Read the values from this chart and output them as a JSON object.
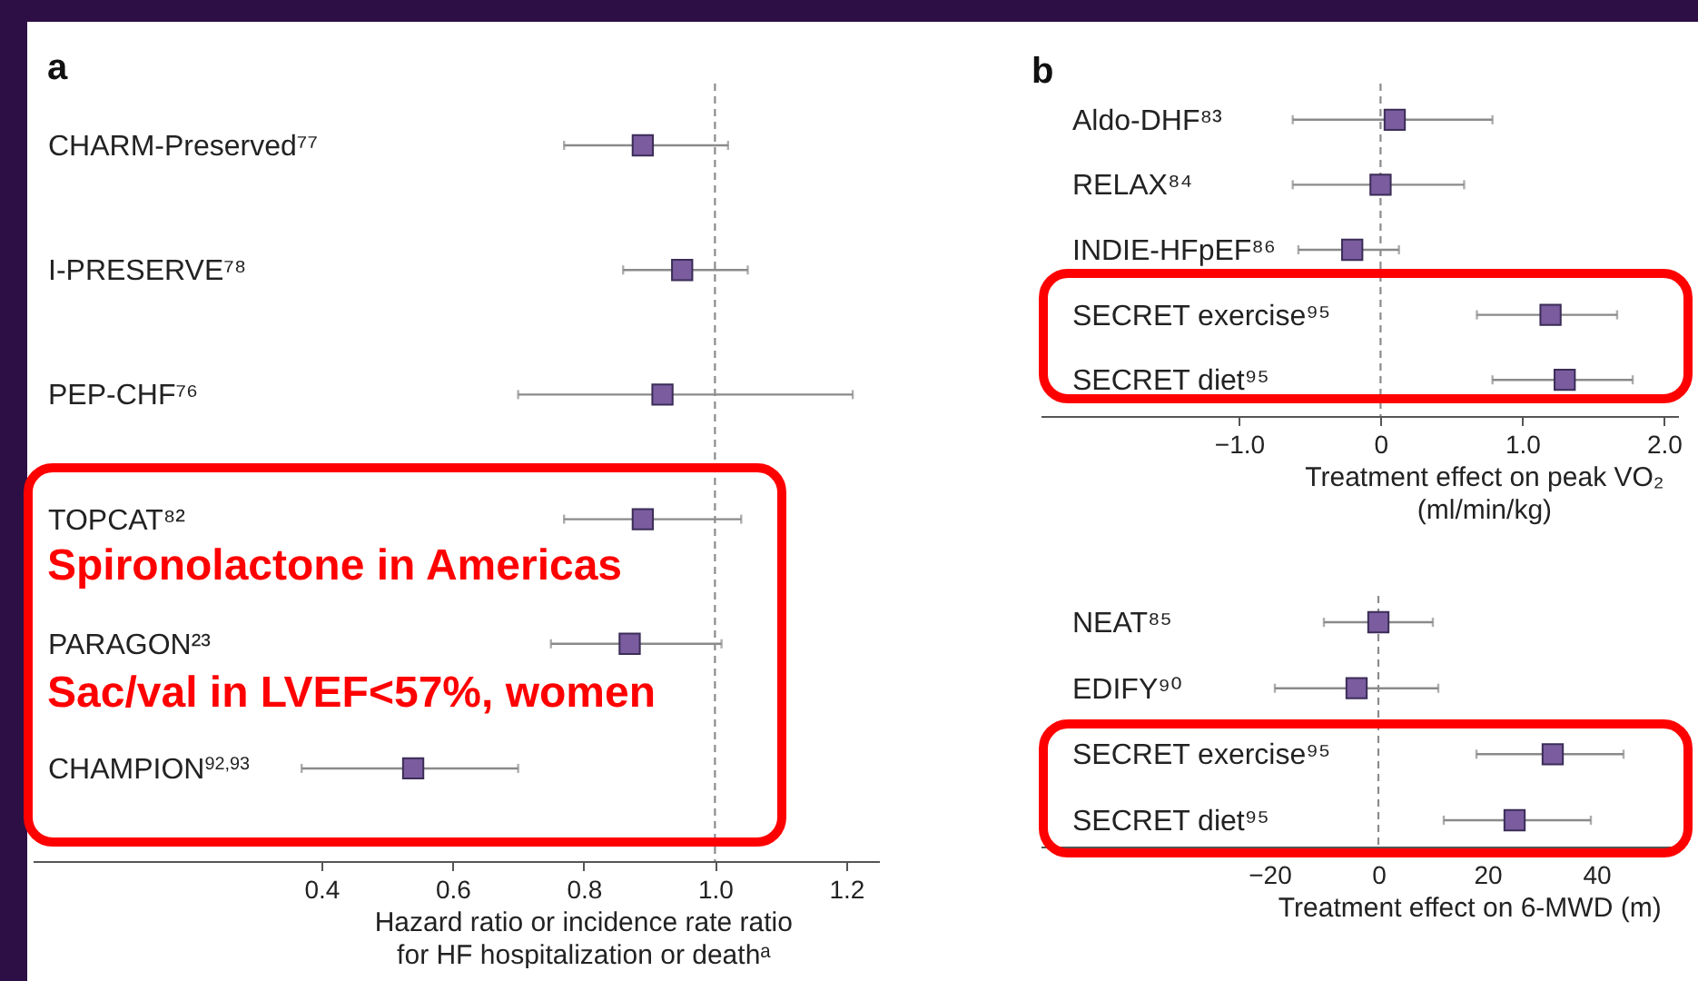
{
  "chart_data": [
    {
      "type": "scatter",
      "title": "a",
      "orientation": "horizontal",
      "categories": [
        "CHARM-Preserved⁷⁷",
        "I-PRESERVE⁷⁸",
        "PEP-CHF⁷⁶",
        "TOPCAT⁸²",
        "PARAGON²³",
        "CHAMPION$^{92,93}$"
      ],
      "values": [
        0.89,
        0.95,
        0.92,
        0.89,
        0.87,
        0.54
      ],
      "errors": [
        [
          0.77,
          1.02
        ],
        [
          0.86,
          1.05
        ],
        [
          0.7,
          1.21
        ],
        [
          0.77,
          1.04
        ],
        [
          0.75,
          1.01
        ],
        [
          0.37,
          0.7
        ]
      ],
      "color": "#7a5c9f",
      "marker": "square",
      "xlim": [
        -0.04,
        1.25
      ],
      "xticks": [
        0.4,
        0.6,
        0.8,
        {
          "value": 1,
          "label": "1.0"
        },
        1.2
      ],
      "xlabel": "Hazard ratio or incidence rate ratio for HF hospitalization or deathᵃ",
      "ref_lines": [
        {
          "axis": "x",
          "value": 1,
          "line_style": "dashed"
        }
      ],
      "annotations": [
        "Spironolactone in Americas",
        "Sac/val in LVEF<57%, women"
      ],
      "grid": false
    },
    {
      "type": "scatter",
      "title": "b",
      "orientation": "horizontal",
      "categories": [
        "Aldo-DHF⁸³",
        "RELAX⁸⁴",
        "INDIE-HFpEF⁸⁶",
        "SECRET exercise⁹⁵",
        "SECRET diet⁹⁵"
      ],
      "values": [
        0.1,
        0.0,
        -0.2,
        1.2,
        1.3
      ],
      "errors": [
        [
          -0.62,
          0.79
        ],
        [
          -0.62,
          0.59
        ],
        [
          -0.58,
          0.13
        ],
        [
          0.68,
          1.67
        ],
        [
          0.79,
          1.78
        ]
      ],
      "color": "#7a5c9f",
      "marker": "square",
      "xlim": [
        -2.4,
        2.1
      ],
      "xticks": [
        {
          "value": -1,
          "label": "−1.0"
        },
        0,
        {
          "value": 1,
          "label": "1.0"
        },
        {
          "value": 2,
          "label": "2.0"
        }
      ],
      "xlabel": "Treatment effect on peak VO₂ (ml/min/kg)",
      "ref_lines": [
        {
          "axis": "x",
          "value": 0,
          "line_style": "dashed"
        }
      ],
      "grid": false
    },
    {
      "type": "scatter",
      "orientation": "horizontal",
      "categories": [
        "NEAT⁸⁵",
        "EDIFY⁹⁰",
        "SECRET exercise⁹⁵",
        "SECRET diet⁹⁵"
      ],
      "values": [
        0,
        -4,
        32,
        25
      ],
      "errors": [
        [
          -10,
          10
        ],
        [
          -19,
          11
        ],
        [
          18,
          45
        ],
        [
          12,
          39
        ]
      ],
      "color": "#7a5c9f",
      "marker": "square",
      "xlim": [
        -62,
        55
      ],
      "xticks": [
        {
          "value": -20,
          "label": "−20"
        },
        0,
        20,
        40
      ],
      "xlabel": "Treatment effect on 6-MWD (m)",
      "ref_lines": [
        {
          "axis": "x",
          "value": 0,
          "line_style": "dashed"
        }
      ],
      "grid": false
    }
  ]
}
